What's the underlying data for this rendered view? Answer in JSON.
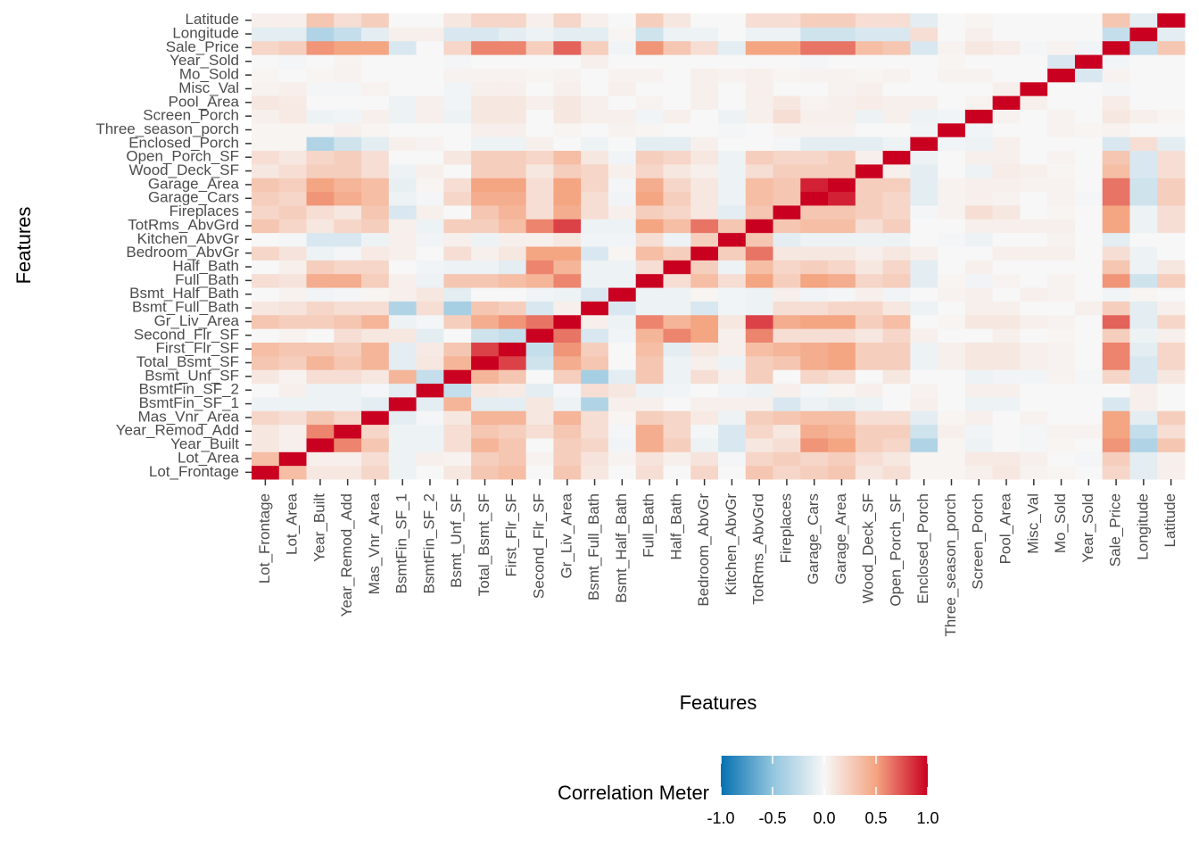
{
  "chart_data": {
    "type": "heatmap",
    "x_label": "Features",
    "y_label": "Features",
    "categories": [
      "Lot_Frontage",
      "Lot_Area",
      "Year_Built",
      "Year_Remod_Add",
      "Mas_Vnr_Area",
      "BsmtFin_SF_1",
      "BsmtFin_SF_2",
      "Bsmt_Unf_SF",
      "Total_Bsmt_SF",
      "First_Flr_SF",
      "Second_Flr_SF",
      "Gr_Liv_Area",
      "Bsmt_Full_Bath",
      "Bsmt_Half_Bath",
      "Full_Bath",
      "Half_Bath",
      "Bedroom_AbvGr",
      "Kitchen_AbvGr",
      "TotRms_AbvGrd",
      "Fireplaces",
      "Garage_Cars",
      "Garage_Area",
      "Wood_Deck_SF",
      "Open_Porch_SF",
      "Enclosed_Porch",
      "Three_season_porch",
      "Screen_Porch",
      "Pool_Area",
      "Misc_Val",
      "Mo_Sold",
      "Year_Sold",
      "Sale_Price",
      "Longitude",
      "Latitude"
    ],
    "values": [
      [
        1
      ],
      [
        0.35,
        1
      ],
      [
        0.1,
        0.05,
        1
      ],
      [
        0.1,
        0.05,
        0.6,
        1
      ],
      [
        0.2,
        0.15,
        0.3,
        0.2,
        1
      ],
      [
        -0.05,
        -0.05,
        -0.05,
        -0.05,
        -0.1,
        1
      ],
      [
        0,
        0.05,
        -0.05,
        -0.05,
        -0.02,
        -0.1,
        1
      ],
      [
        0.1,
        0.03,
        0.15,
        0.15,
        0.1,
        0.4,
        -0.25,
        1
      ],
      [
        0.3,
        0.25,
        0.4,
        0.3,
        0.4,
        -0.1,
        0.1,
        0.4,
        1
      ],
      [
        0.35,
        0.3,
        0.3,
        0.25,
        0.4,
        -0.1,
        0.08,
        0.3,
        0.8,
        1
      ],
      [
        0,
        0.03,
        0,
        0.15,
        0.1,
        0.1,
        -0.1,
        0,
        -0.2,
        -0.25,
        1
      ],
      [
        0.3,
        0.25,
        0.25,
        0.3,
        0.4,
        -0.05,
        -0.02,
        0.25,
        0.45,
        0.55,
        0.65,
        1
      ],
      [
        0.1,
        0.12,
        0.2,
        0.15,
        0.15,
        -0.35,
        0.15,
        -0.4,
        0.3,
        0.25,
        -0.15,
        0.05,
        1
      ],
      [
        0,
        0.03,
        -0.03,
        -0.02,
        0.02,
        0.05,
        0.1,
        -0.1,
        0,
        0,
        -0.03,
        -0.05,
        -0.15,
        1
      ],
      [
        0.15,
        0.12,
        0.45,
        0.45,
        0.25,
        0.05,
        -0.05,
        0.3,
        0.3,
        0.35,
        0.4,
        0.6,
        -0.05,
        -0.05,
        1
      ],
      [
        0,
        0.05,
        0.25,
        0.2,
        0.2,
        0,
        -0.03,
        -0.05,
        -0.05,
        -0.1,
        0.6,
        0.4,
        -0.05,
        -0.05,
        0.15,
        1
      ],
      [
        0.2,
        0.12,
        -0.05,
        -0.02,
        0.08,
        0.05,
        0,
        0.15,
        0.05,
        0.1,
        0.5,
        0.5,
        -0.15,
        0.02,
        0.35,
        0.25,
        1
      ],
      [
        0,
        -0.02,
        -0.15,
        -0.15,
        -0.05,
        0.05,
        -0.03,
        0.05,
        -0.05,
        0.05,
        0.05,
        0.1,
        -0.03,
        -0.03,
        0.15,
        -0.05,
        0.25,
        1
      ],
      [
        0.3,
        0.2,
        0.1,
        0.2,
        0.25,
        0.05,
        -0.05,
        0.25,
        0.25,
        0.35,
        0.6,
        0.8,
        -0.05,
        -0.05,
        0.5,
        0.35,
        0.65,
        0.3,
        1
      ],
      [
        0.2,
        0.25,
        0.15,
        0.1,
        0.3,
        -0.15,
        0.05,
        0,
        0.3,
        0.4,
        0.15,
        0.45,
        0.15,
        0.05,
        0.25,
        0.2,
        0.1,
        -0.1,
        0.3,
        1
      ],
      [
        0.25,
        0.2,
        0.55,
        0.45,
        0.35,
        -0.05,
        -0.02,
        0.2,
        0.45,
        0.45,
        0.15,
        0.5,
        0.15,
        -0.03,
        0.5,
        0.25,
        0.1,
        -0.05,
        0.35,
        0.3,
        1
      ],
      [
        0.3,
        0.25,
        0.5,
        0.4,
        0.35,
        -0.08,
        0.02,
        0.15,
        0.5,
        0.5,
        0.15,
        0.5,
        0.2,
        -0.02,
        0.45,
        0.2,
        0.1,
        -0.05,
        0.35,
        0.3,
        0.9,
        1
      ],
      [
        0.1,
        0.15,
        0.25,
        0.25,
        0.15,
        -0.05,
        0.05,
        0,
        0.25,
        0.25,
        0.1,
        0.25,
        0.2,
        0.05,
        0.2,
        0.1,
        0.05,
        -0.05,
        0.15,
        0.25,
        0.25,
        0.25,
        1
      ],
      [
        0.15,
        0.1,
        0.2,
        0.25,
        0.15,
        0,
        0,
        0.1,
        0.25,
        0.25,
        0.2,
        0.35,
        0.1,
        -0.03,
        0.25,
        0.2,
        0.1,
        -0.05,
        0.25,
        0.2,
        0.2,
        0.25,
        0.05,
        1
      ],
      [
        0.02,
        0.02,
        -0.35,
        -0.2,
        -0.1,
        0.05,
        0.03,
        0,
        -0.05,
        -0.05,
        0.05,
        0,
        -0.05,
        0,
        -0.1,
        -0.1,
        0.05,
        0,
        0,
        -0.02,
        -0.1,
        -0.1,
        -0.1,
        -0.05,
        1
      ],
      [
        0.02,
        0.02,
        0.02,
        0.05,
        0.02,
        0,
        0,
        0,
        0.05,
        0.05,
        0,
        0.02,
        0,
        0.03,
        0.02,
        0,
        0,
        -0.02,
        0,
        0.03,
        0.03,
        0.03,
        0,
        0,
        -0.03,
        1
      ],
      [
        0.05,
        0.08,
        -0.05,
        -0.03,
        0.05,
        -0.05,
        0.05,
        -0.05,
        0.1,
        0.1,
        0,
        0.1,
        0.05,
        0.05,
        -0.03,
        0.05,
        0,
        -0.05,
        0.05,
        0.15,
        0.05,
        0.05,
        -0.05,
        0.05,
        -0.05,
        -0.03,
        1
      ],
      [
        0.1,
        0.08,
        0,
        0,
        0,
        -0.05,
        0.05,
        -0.03,
        0.1,
        0.1,
        0.05,
        0.1,
        0.05,
        0,
        0.03,
        0,
        0.05,
        0,
        0.05,
        0.1,
        0.03,
        0.05,
        0.07,
        0.05,
        0.05,
        0,
        0.03,
        1
      ],
      [
        0.03,
        0.05,
        -0.02,
        -0.02,
        0.03,
        0,
        0,
        -0.03,
        0.05,
        0.05,
        0,
        0.05,
        0,
        0.05,
        0,
        0,
        0.05,
        0,
        0.05,
        0,
        0,
        0.03,
        0.05,
        0,
        0,
        0,
        0,
        0.05,
        1
      ],
      [
        0.02,
        0,
        0.02,
        0.03,
        0,
        0,
        0,
        0.03,
        0.03,
        0.03,
        0.02,
        0.03,
        0,
        0.03,
        0.03,
        0,
        0.05,
        0.03,
        0.05,
        0.02,
        0.03,
        0.03,
        0.02,
        0.03,
        0,
        0.03,
        0.03,
        0,
        0,
        1
      ],
      [
        0,
        -0.02,
        0,
        0.03,
        0,
        0,
        0,
        -0.02,
        0,
        0,
        0,
        0,
        0.05,
        0,
        0,
        0,
        0,
        0,
        0,
        0,
        -0.02,
        0,
        0,
        0,
        0,
        0.02,
        0,
        0,
        0,
        -0.15,
        1
      ],
      [
        0.2,
        0.25,
        0.55,
        0.5,
        0.5,
        -0.15,
        0,
        0.2,
        0.6,
        0.6,
        0.25,
        0.7,
        0.25,
        -0.03,
        0.55,
        0.3,
        0.15,
        -0.1,
        0.5,
        0.5,
        0.65,
        0.65,
        0.35,
        0.3,
        -0.15,
        0.03,
        0.1,
        0.07,
        -0.02,
        0.03,
        -0.03,
        1
      ],
      [
        -0.1,
        -0.1,
        -0.35,
        -0.25,
        -0.1,
        0.05,
        0.05,
        -0.15,
        -0.15,
        -0.1,
        -0.05,
        -0.1,
        -0.1,
        0.02,
        -0.2,
        -0.05,
        -0.05,
        0,
        -0.05,
        -0.05,
        -0.2,
        -0.2,
        -0.15,
        -0.15,
        0.15,
        0,
        0.05,
        0,
        0,
        0,
        0,
        -0.25,
        1
      ],
      [
        0.05,
        0.05,
        0.3,
        0.15,
        0.25,
        0,
        0,
        0.1,
        0.2,
        0.2,
        0.05,
        0.2,
        0.05,
        0,
        0.25,
        0.1,
        0,
        0,
        0.15,
        0.15,
        0.25,
        0.25,
        0.15,
        0.15,
        -0.1,
        0,
        0.02,
        0,
        0,
        0,
        0,
        0.3,
        -0.1,
        1
      ]
    ],
    "clim": [
      -1,
      1
    ],
    "colors": [
      "#0571b0",
      "#92c5de",
      "#f7f7f7",
      "#f4a582",
      "#ca0020"
    ],
    "legend": {
      "title": "Correlation Meter",
      "ticks": [
        {
          "value": -1,
          "label": "-1.0"
        },
        -0.5,
        {
          "value": 0,
          "label": "0.0"
        },
        0.5,
        {
          "value": 1,
          "label": "1.0"
        }
      ]
    }
  }
}
